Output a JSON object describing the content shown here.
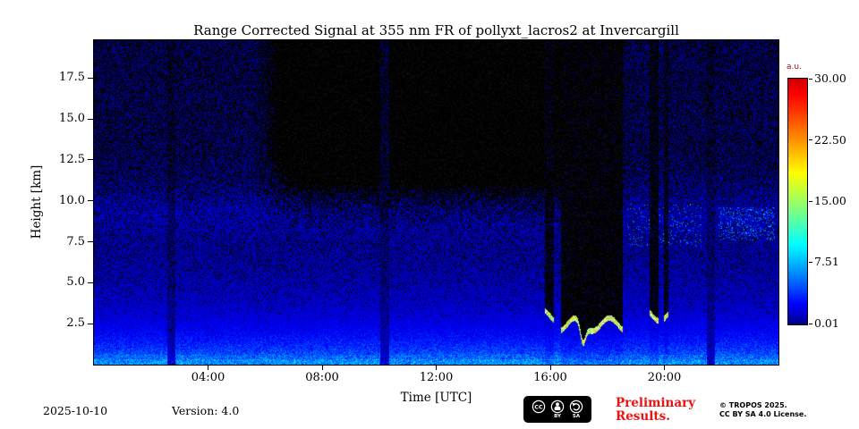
{
  "figure": {
    "title": "Range Corrected Signal at 355 nm FR of pollyxt_lacros2 at Invercargill",
    "xlabel": "Time [UTC]",
    "ylabel": "Height [km]"
  },
  "colorbar": {
    "unit": "a.u."
  },
  "footer": {
    "date": "2025-10-10",
    "version": "Version: 4.0",
    "preliminary_line1": "Preliminary",
    "preliminary_line2": "Results.",
    "copyright_line1": "© TROPOS 2025.",
    "copyright_line2": "CC BY SA 4.0 License.",
    "cc_badge": {
      "label_cc": "CC",
      "label_by": "BY",
      "label_sa": "SA"
    }
  },
  "chart_data": {
    "type": "heatmap",
    "title": "Range Corrected Signal at 355 nm FR of pollyxt_lacros2 at Invercargill",
    "xlabel": "Time [UTC]",
    "ylabel": "Height [km]",
    "x_ticks": [
      "04:00",
      "08:00",
      "12:00",
      "16:00",
      "20:00"
    ],
    "x_tick_hours": [
      4,
      8,
      12,
      16,
      20
    ],
    "xlim_hours": [
      0,
      24
    ],
    "y_ticks": [
      "2.5",
      "5.0",
      "7.5",
      "10.0",
      "12.5",
      "15.0",
      "17.5"
    ],
    "y_tick_km": [
      2.5,
      5.0,
      7.5,
      10.0,
      12.5,
      15.0,
      17.5
    ],
    "ylim_km": [
      0,
      19.8
    ],
    "colorbar": {
      "label": "a.u.",
      "tick_labels": [
        "30.00",
        "22.50",
        "15.00",
        "7.51",
        "0.01"
      ],
      "tick_values": [
        30.0,
        22.5,
        15.0,
        7.51,
        0.01
      ],
      "vmin": 0.01,
      "vmax": 30.0,
      "colormap": "jet"
    },
    "features": {
      "description": "Blue range-corrected lidar signal, strongest near the ground and decreasing with height; black speckle noise dropout dominates above ~10 km; liquid cloud layers near 2-3 km between 16:00 and 20:00 UTC fully attenuate the signal above them (bright cloud base, black columns); faint cirrus/aerosol traces near 8-10 km after 19:00 UTC; dim full-height calibration columns near 02:40, 10:10 and 21:40 UTC",
      "dark_zone": {
        "start_hour": 5.6,
        "end_hour": 18.7,
        "above_km": 8.0
      },
      "attenuated_columns_hours": [
        2.7,
        10.2,
        21.65
      ],
      "cloud_events": [
        {
          "start_hour": 15.82,
          "end_hour": 16.12,
          "base_km": 2.85,
          "attenuation": 0.88
        },
        {
          "start_hour": 16.38,
          "end_hour": 18.55,
          "base_km": 2.35,
          "attenuation": 0.94,
          "dip_hour": 17.15
        },
        {
          "start_hour": 19.5,
          "end_hour": 19.8,
          "base_km": 2.95,
          "attenuation": 0.86
        },
        {
          "start_hour": 20.0,
          "end_hour": 20.15,
          "base_km": 3.0,
          "attenuation": 0.8
        }
      ],
      "cirrus_patches": [
        {
          "start_hour": 18.7,
          "end_hour": 21.3,
          "km_range": [
            7.2,
            9.8
          ],
          "density": 0.1
        },
        {
          "start_hour": 21.9,
          "end_hour": 23.9,
          "km_range": [
            7.6,
            9.6
          ],
          "density": 0.22
        }
      ]
    }
  }
}
